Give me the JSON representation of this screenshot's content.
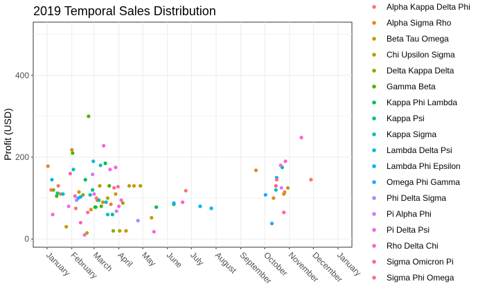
{
  "chart_data": {
    "type": "scatter",
    "title": "2019 Temporal Sales Distribution",
    "xlabel": "",
    "ylabel": "Profit (USD)",
    "ylim": [
      -20,
      530
    ],
    "y_ticks": [
      0,
      200,
      400
    ],
    "x_ticks": [
      "January",
      "February",
      "March",
      "April",
      "May",
      "June",
      "July",
      "August",
      "September",
      "October",
      "November",
      "December",
      "January"
    ],
    "x_domain": [
      "2019-01-01",
      "2020-01-01"
    ],
    "grid": true,
    "legend_position": "right",
    "series": [
      {
        "name": "Alpha Kappa Delta Phi",
        "color": "#F8766D",
        "points": [
          [
            "2019-01-06",
            120
          ],
          [
            "2019-02-06",
            75
          ],
          [
            "2019-06-24",
            118
          ],
          [
            "2019-10-26",
            115
          ],
          [
            "2019-11-28",
            145
          ]
        ]
      },
      {
        "name": "Alpha Sigma Rho",
        "color": "#E7851E",
        "points": [
          [
            "2019-01-02",
            178
          ],
          [
            "2019-01-18",
            110
          ],
          [
            "2019-02-01",
            218
          ],
          [
            "2019-03-05",
            95
          ],
          [
            "2019-03-22",
            85
          ],
          [
            "2019-04-20",
            130
          ],
          [
            "2019-09-20",
            168
          ],
          [
            "2019-10-12",
            100
          ]
        ]
      },
      {
        "name": "Beta Tau Omega",
        "color": "#D09400",
        "points": [
          [
            "2019-01-25",
            30
          ],
          [
            "2019-02-10",
            115
          ],
          [
            "2019-02-25",
            72
          ],
          [
            "2019-03-12",
            90
          ],
          [
            "2019-03-28",
            110
          ],
          [
            "2019-04-10",
            20
          ],
          [
            "2019-05-12",
            52
          ],
          [
            "2019-10-25",
            110
          ]
        ]
      },
      {
        "name": "Chi Upsilon Sigma",
        "color": "#B2A100",
        "points": [
          [
            "2019-02-20",
            15
          ],
          [
            "2019-03-08",
            130
          ],
          [
            "2019-03-18",
            100
          ],
          [
            "2019-04-02",
            20
          ],
          [
            "2019-04-14",
            130
          ],
          [
            "2019-04-28",
            130
          ],
          [
            "2019-10-30",
            125
          ]
        ]
      },
      {
        "name": "Delta Kappa Delta",
        "color": "#89AC00",
        "points": [
          [
            "2019-01-09",
            120
          ],
          [
            "2019-02-15",
            108
          ],
          [
            "2019-03-02",
            78
          ],
          [
            "2019-03-25",
            20
          ],
          [
            "2019-04-06",
            88
          ]
        ]
      },
      {
        "name": "Gamma Beta",
        "color": "#45B500",
        "points": [
          [
            "2019-01-13",
            105
          ],
          [
            "2019-02-02",
            210
          ],
          [
            "2019-02-22",
            300
          ],
          [
            "2019-03-10",
            80
          ],
          [
            "2019-03-20",
            130
          ]
        ]
      },
      {
        "name": "Kappa Phi Lambda",
        "color": "#00BC51",
        "points": [
          [
            "2019-02-18",
            145
          ],
          [
            "2019-03-03",
            78
          ],
          [
            "2019-03-15",
            185
          ],
          [
            "2019-05-18",
            78
          ],
          [
            "2019-06-09",
            85
          ]
        ]
      },
      {
        "name": "Kappa Psi",
        "color": "#00C087",
        "points": [
          [
            "2019-02-27",
            120
          ],
          [
            "2019-03-07",
            95
          ],
          [
            "2019-03-24",
            60
          ]
        ]
      },
      {
        "name": "Kappa Sigma",
        "color": "#00C0B2",
        "points": [
          [
            "2019-01-14",
            112
          ],
          [
            "2019-02-24",
            108
          ],
          [
            "2019-03-09",
            180
          ],
          [
            "2019-10-23",
            175
          ]
        ]
      },
      {
        "name": "Lambda Delta Psi",
        "color": "#00BCD6",
        "points": [
          [
            "2019-01-21",
            110
          ],
          [
            "2019-02-03",
            170
          ],
          [
            "2019-02-28",
            190
          ],
          [
            "2019-03-18",
            60
          ],
          [
            "2019-10-15",
            120
          ]
        ]
      },
      {
        "name": "Lambda Phi Epsilon",
        "color": "#00B3F2",
        "points": [
          [
            "2019-01-07",
            145
          ],
          [
            "2019-02-12",
            103
          ],
          [
            "2019-03-16",
            90
          ],
          [
            "2019-06-09",
            88
          ],
          [
            "2019-07-12",
            80
          ],
          [
            "2019-07-26",
            75
          ],
          [
            "2019-10-16",
            150
          ]
        ]
      },
      {
        "name": "Omega Phi Gamma",
        "color": "#29A3FF",
        "points": [
          [
            "2019-02-09",
            100
          ],
          [
            "2019-10-02",
            108
          ],
          [
            "2019-10-10",
            38
          ]
        ]
      },
      {
        "name": "Phi Delta Sigma",
        "color": "#9C8DFF",
        "points": [
          [
            "2019-04-25",
            45
          ],
          [
            "2019-02-07",
            95
          ]
        ]
      },
      {
        "name": "Pi Alpha Phi",
        "color": "#D277FF",
        "points": [
          [
            "2019-03-29",
            68
          ],
          [
            "2019-02-27",
            158
          ],
          [
            "2019-10-22",
            125
          ]
        ]
      },
      {
        "name": "Pi Delta Psi",
        "color": "#F166E8",
        "points": [
          [
            "2019-01-08",
            60
          ],
          [
            "2019-01-28",
            80
          ],
          [
            "2019-02-17",
            10
          ],
          [
            "2019-03-01",
            110
          ],
          [
            "2019-03-21",
            170
          ],
          [
            "2019-04-01",
            80
          ],
          [
            "2019-10-21",
            180
          ],
          [
            "2019-05-15",
            18
          ]
        ]
      },
      {
        "name": "Rho Delta Chi",
        "color": "#FF61C7",
        "points": [
          [
            "2019-02-05",
            105
          ],
          [
            "2019-02-21",
            65
          ],
          [
            "2019-03-13",
            228
          ],
          [
            "2019-03-28",
            175
          ],
          [
            "2019-04-04",
            95
          ],
          [
            "2019-06-20",
            90
          ],
          [
            "2019-10-27",
            190
          ],
          [
            "2019-11-16",
            248
          ]
        ]
      },
      {
        "name": "Sigma Omicron Pi",
        "color": "#FF62A0",
        "points": [
          [
            "2019-01-30",
            160
          ],
          [
            "2019-02-12",
            40
          ],
          [
            "2019-03-26",
            125
          ],
          [
            "2019-10-15",
            130
          ],
          [
            "2019-10-25",
            65
          ]
        ]
      },
      {
        "name": "Sigma Phi Omega",
        "color": "#FC717F",
        "points": [
          [
            "2019-01-15",
            130
          ],
          [
            "2019-03-04",
            100
          ],
          [
            "2019-03-31",
            128
          ],
          [
            "2019-10-16",
            145
          ]
        ]
      }
    ]
  }
}
